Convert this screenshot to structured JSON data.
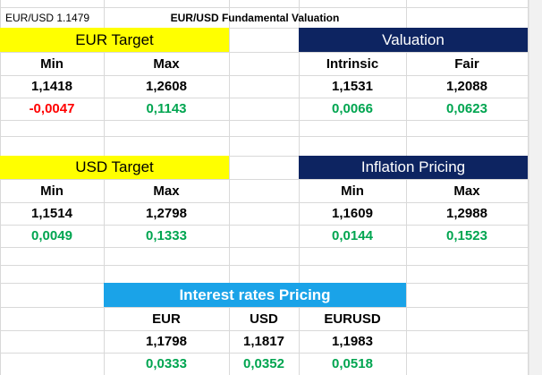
{
  "ticker": "EUR/USD 1.1479",
  "title": "EUR/USD Fundamental Valuation",
  "eur_target": {
    "header": "EUR Target",
    "col1": "Min",
    "col2": "Max",
    "val1": "1,1418",
    "val2": "1,2608",
    "diff1": "-0,0047",
    "diff2": "0,1143"
  },
  "valuation": {
    "header": "Valuation",
    "col1": "Intrinsic",
    "col2": "Fair",
    "val1": "1,1531",
    "val2": "1,2088",
    "diff1": "0,0066",
    "diff2": "0,0623"
  },
  "usd_target": {
    "header": "USD Target",
    "col1": "Min",
    "col2": "Max",
    "val1": "1,1514",
    "val2": "1,2798",
    "diff1": "0,0049",
    "diff2": "0,1333"
  },
  "inflation": {
    "header": "Inflation Pricing",
    "col1": "Min",
    "col2": "Max",
    "val1": "1,1609",
    "val2": "1,2988",
    "diff1": "0,0144",
    "diff2": "0,1523"
  },
  "interest": {
    "header": "Interest rates Pricing",
    "col1": "EUR",
    "col2": "USD",
    "col3": "EURUSD",
    "val1": "1,1798",
    "val2": "1,1817",
    "val3": "1,1983",
    "diff1": "0,0333",
    "diff2": "0,0352",
    "diff3": "0,0518"
  },
  "colors": {
    "yellow": "#ffff00",
    "navy": "#0d2461",
    "cyan": "#1aa3e8",
    "negative": "#ff0000",
    "positive": "#00a550"
  }
}
